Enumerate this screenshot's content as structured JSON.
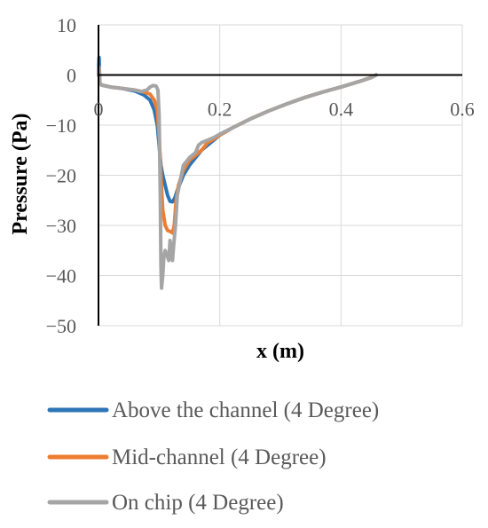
{
  "chart_data": {
    "type": "line",
    "title": "",
    "xlabel": "x (m)",
    "ylabel": "Pressure (Pa)",
    "xlim": [
      0,
      0.6
    ],
    "ylim": [
      -50,
      10
    ],
    "x_ticks": [
      0,
      0.2,
      0.4,
      0.6
    ],
    "x_tick_labels": [
      "0",
      "0.2",
      "0.4",
      "0.6"
    ],
    "y_ticks": [
      10,
      0,
      -10,
      -20,
      -30,
      -40,
      -50
    ],
    "y_tick_labels": [
      "10",
      "0",
      "−10",
      "−20",
      "−30",
      "−40",
      "−50"
    ],
    "grid": true,
    "legend_position": "bottom",
    "series": [
      {
        "name": "Above the channel (4 Degree)",
        "color": "#2E75B6",
        "points": [
          [
            0,
            0
          ],
          [
            0.001,
            3.5
          ],
          [
            0.002,
            -1.5
          ],
          [
            0.005,
            -2
          ],
          [
            0.02,
            -2.4
          ],
          [
            0.04,
            -2.7
          ],
          [
            0.06,
            -3.2
          ],
          [
            0.075,
            -4
          ],
          [
            0.085,
            -5
          ],
          [
            0.092,
            -7
          ],
          [
            0.097,
            -10
          ],
          [
            0.1,
            -14
          ],
          [
            0.103,
            -18
          ],
          [
            0.106,
            -20
          ],
          [
            0.11,
            -22
          ],
          [
            0.114,
            -24
          ],
          [
            0.118,
            -25.2
          ],
          [
            0.122,
            -25.3
          ],
          [
            0.126,
            -24.5
          ],
          [
            0.13,
            -23
          ],
          [
            0.135,
            -21.5
          ],
          [
            0.14,
            -20
          ],
          [
            0.15,
            -18
          ],
          [
            0.16,
            -16.5
          ],
          [
            0.17,
            -15
          ],
          [
            0.18,
            -14
          ],
          [
            0.19,
            -13
          ],
          [
            0.2,
            -12
          ],
          [
            0.21,
            -11.3
          ],
          [
            0.22,
            -10.6
          ],
          [
            0.25,
            -8.8
          ],
          [
            0.28,
            -7.2
          ],
          [
            0.31,
            -5.8
          ],
          [
            0.34,
            -4.5
          ],
          [
            0.37,
            -3.4
          ],
          [
            0.4,
            -2.4
          ],
          [
            0.43,
            -1.3
          ],
          [
            0.45,
            -0.5
          ],
          [
            0.458,
            0
          ]
        ]
      },
      {
        "name": "Mid-channel (4 Degree)",
        "color": "#ED7D31",
        "points": [
          [
            0,
            0
          ],
          [
            0.001,
            1.5
          ],
          [
            0.002,
            -1.5
          ],
          [
            0.005,
            -2
          ],
          [
            0.02,
            -2.4
          ],
          [
            0.04,
            -2.7
          ],
          [
            0.06,
            -3
          ],
          [
            0.075,
            -3.4
          ],
          [
            0.085,
            -3.8
          ],
          [
            0.092,
            -5
          ],
          [
            0.097,
            -7
          ],
          [
            0.1,
            -12
          ],
          [
            0.103,
            -20
          ],
          [
            0.106,
            -27
          ],
          [
            0.11,
            -30
          ],
          [
            0.114,
            -31
          ],
          [
            0.118,
            -31.2
          ],
          [
            0.122,
            -31.5
          ],
          [
            0.125,
            -30
          ],
          [
            0.128,
            -25
          ],
          [
            0.132,
            -22
          ],
          [
            0.14,
            -19
          ],
          [
            0.15,
            -17
          ],
          [
            0.16,
            -16
          ],
          [
            0.17,
            -15
          ],
          [
            0.18,
            -13.5
          ],
          [
            0.19,
            -12.8
          ],
          [
            0.2,
            -12
          ],
          [
            0.21,
            -11.3
          ],
          [
            0.22,
            -10.6
          ],
          [
            0.25,
            -8.8
          ],
          [
            0.28,
            -7.2
          ],
          [
            0.31,
            -5.8
          ],
          [
            0.34,
            -4.5
          ],
          [
            0.37,
            -3.4
          ],
          [
            0.4,
            -2.4
          ],
          [
            0.43,
            -1.3
          ],
          [
            0.45,
            -0.5
          ],
          [
            0.458,
            0
          ]
        ]
      },
      {
        "name": "On chip (4 Degree)",
        "color": "#A5A5A5",
        "points": [
          [
            0,
            0
          ],
          [
            0.001,
            1.5
          ],
          [
            0.002,
            -1.5
          ],
          [
            0.005,
            -2
          ],
          [
            0.02,
            -2.4
          ],
          [
            0.04,
            -2.7
          ],
          [
            0.06,
            -3
          ],
          [
            0.07,
            -3.3
          ],
          [
            0.08,
            -3
          ],
          [
            0.085,
            -2.4
          ],
          [
            0.09,
            -2.1
          ],
          [
            0.095,
            -2.2
          ],
          [
            0.098,
            -3
          ],
          [
            0.1,
            -8
          ],
          [
            0.102,
            -25
          ],
          [
            0.103,
            -38
          ],
          [
            0.104,
            -42.5
          ],
          [
            0.106,
            -40
          ],
          [
            0.108,
            -36
          ],
          [
            0.11,
            -35
          ],
          [
            0.113,
            -36
          ],
          [
            0.116,
            -37
          ],
          [
            0.118,
            -33
          ],
          [
            0.12,
            -35
          ],
          [
            0.122,
            -37
          ],
          [
            0.124,
            -34
          ],
          [
            0.127,
            -30
          ],
          [
            0.13,
            -24
          ],
          [
            0.135,
            -21
          ],
          [
            0.14,
            -18
          ],
          [
            0.15,
            -16.5
          ],
          [
            0.16,
            -15.5
          ],
          [
            0.165,
            -14
          ],
          [
            0.17,
            -13.5
          ],
          [
            0.18,
            -13
          ],
          [
            0.19,
            -12.5
          ],
          [
            0.2,
            -11.8
          ],
          [
            0.21,
            -11.2
          ],
          [
            0.22,
            -10.6
          ],
          [
            0.25,
            -8.8
          ],
          [
            0.28,
            -7.2
          ],
          [
            0.31,
            -5.8
          ],
          [
            0.34,
            -4.5
          ],
          [
            0.37,
            -3.4
          ],
          [
            0.4,
            -2.4
          ],
          [
            0.43,
            -1.3
          ],
          [
            0.45,
            -0.5
          ],
          [
            0.458,
            0
          ]
        ]
      }
    ]
  }
}
